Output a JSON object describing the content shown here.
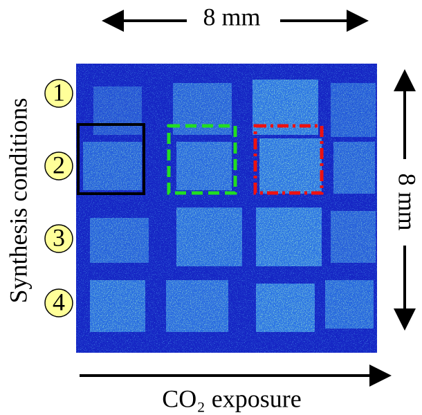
{
  "top_scale": "8 mm",
  "side_scale": "8 mm",
  "y_axis_label": "Synthesis conditions",
  "x_axis_label": "CO₂ exposure",
  "conditions": [
    "1",
    "2",
    "3",
    "4"
  ]
}
